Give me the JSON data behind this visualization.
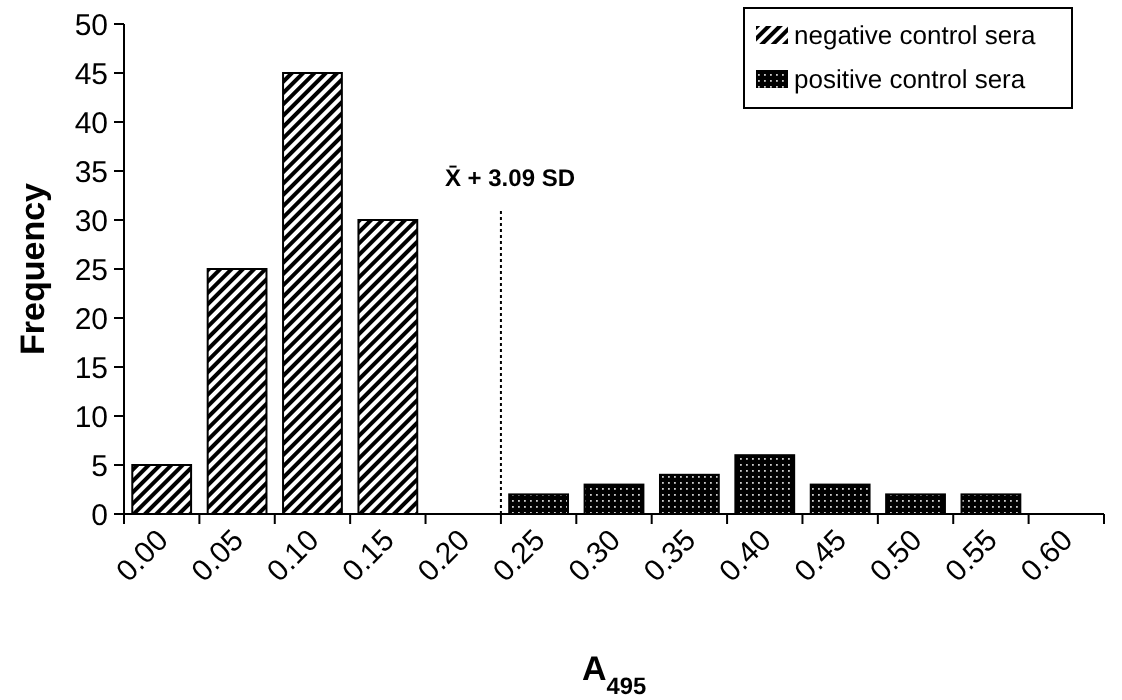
{
  "chart_data": {
    "type": "bar",
    "xlabel": "A$_{495}$",
    "ylabel": "Frequency",
    "xlim": [
      -0.025,
      0.625
    ],
    "xticks": [
      {
        "value": 0,
        "label": "0.00"
      },
      {
        "value": 0.05,
        "label": "0.05"
      },
      {
        "value": 0.1,
        "label": "0.10"
      },
      {
        "value": 0.15,
        "label": "0.15"
      },
      {
        "value": 0.2,
        "label": "0.20"
      },
      {
        "value": 0.25,
        "label": "0.25"
      },
      {
        "value": 0.3,
        "label": "0.30"
      },
      {
        "value": 0.35,
        "label": "0.35"
      },
      {
        "value": 0.4,
        "label": "0.40"
      },
      {
        "value": 0.45,
        "label": "0.45"
      },
      {
        "value": 0.5,
        "label": "0.50"
      },
      {
        "value": 0.55,
        "label": "0.55"
      },
      {
        "value": 0.6,
        "label": "0.60"
      }
    ],
    "ylim": [
      0,
      50
    ],
    "yticks": [
      0,
      5,
      10,
      15,
      20,
      25,
      30,
      35,
      40,
      45,
      50
    ],
    "series": [
      {
        "name": "negative control sera",
        "color": "#000000",
        "x": [
          0,
          0.05,
          0.1,
          0.15
        ],
        "values": [
          5,
          25,
          45,
          30
        ]
      },
      {
        "name": "positive control sera",
        "color": "#000000",
        "x": [
          0.25,
          0.3,
          0.35,
          0.4,
          0.45,
          0.5,
          0.55
        ],
        "values": [
          2,
          3,
          4,
          6,
          3,
          2,
          2
        ]
      }
    ],
    "ref_lines": [
      {
        "axis": "x",
        "value": 0.225,
        "label": "X̄ + 3.09 SD",
        "line_style": "dotted"
      }
    ],
    "grid": false,
    "legend": "top right"
  }
}
